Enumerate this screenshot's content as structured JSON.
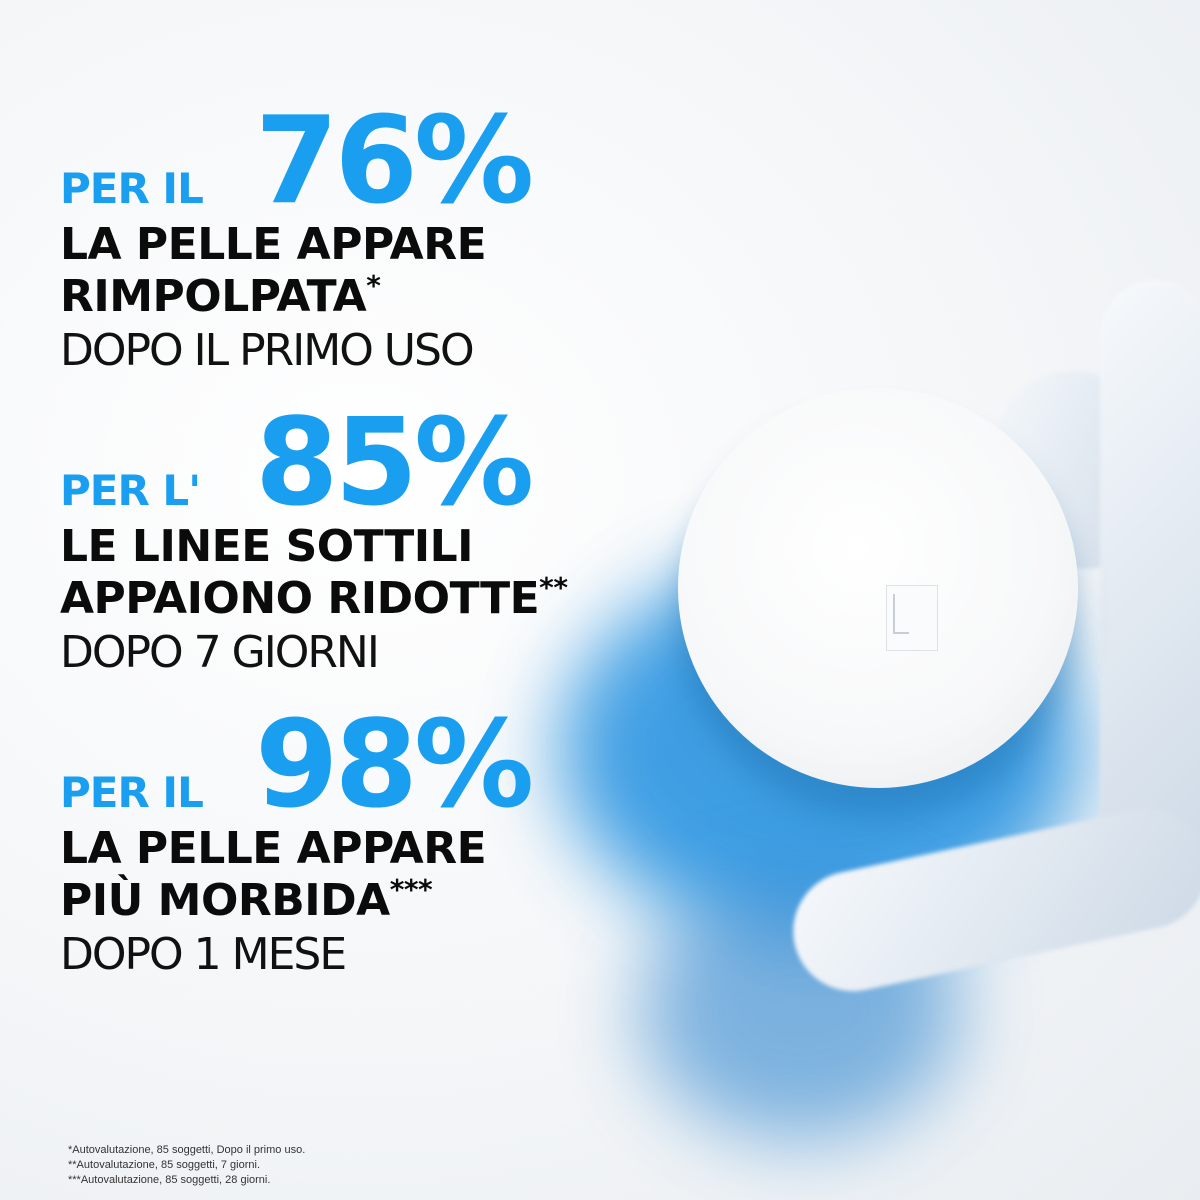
{
  "stats": [
    {
      "prefix": "PER IL",
      "percent": "76%",
      "line1": "LA PELLE APPARE",
      "line2": "RIMPOLPATA",
      "mark": "*",
      "period": "DOPO IL PRIMO USO"
    },
    {
      "prefix": "PER L'",
      "percent": "85%",
      "line1": "LE LINEE SOTTILI",
      "line2": "APPAIONO RIDOTTE",
      "mark": "**",
      "period": "DOPO 7 GIORNI"
    },
    {
      "prefix": "PER IL",
      "percent": "98%",
      "line1": "LA PELLE APPARE",
      "line2": "PIÙ MORBIDA",
      "mark": "***",
      "period": "DOPO 1 MESE"
    }
  ],
  "footnotes": [
    "*Autovalutazione, 85 soggetti, Dopo il primo uso.",
    "**Autovalutazione, 85 soggetti, 7 giorni.",
    "***Autovalutazione, 85 soggetti, 28 giorni."
  ],
  "colors": {
    "accent": "#1a9ff0",
    "text": "#0b0b0b",
    "product_blue": "#1577c9"
  }
}
